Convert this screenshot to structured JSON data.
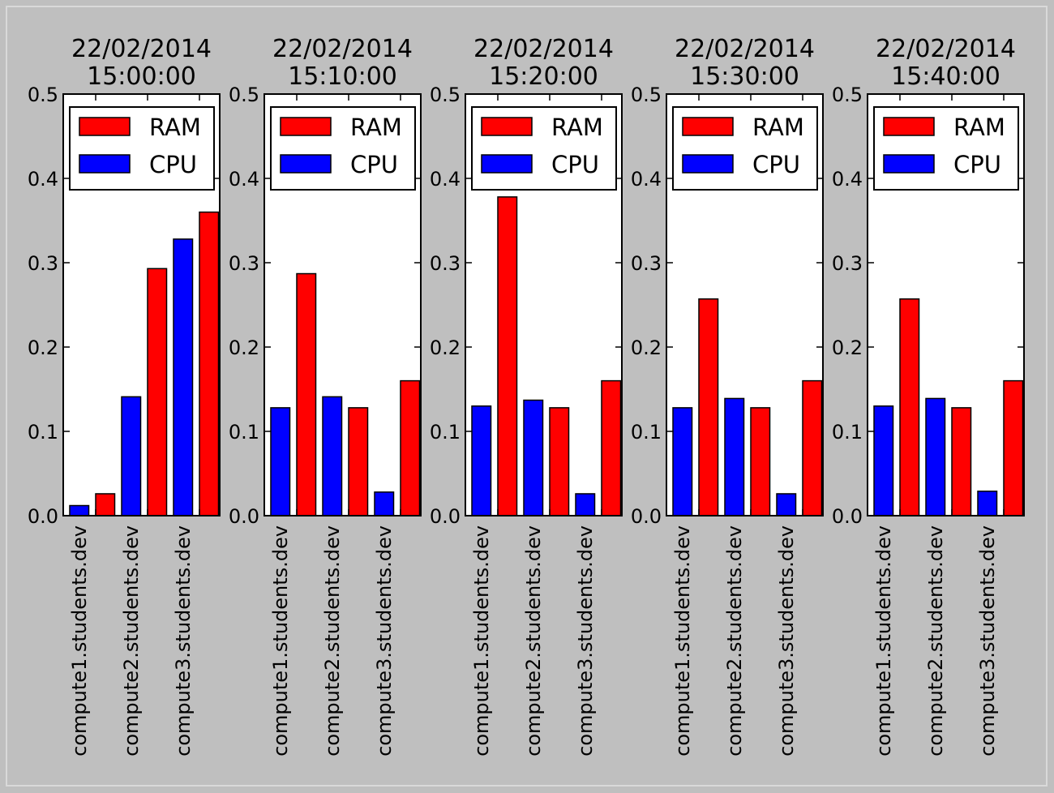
{
  "figure": {
    "background": "#bfbfbf",
    "ram_color": "#ff0000",
    "cpu_color": "#0000ff"
  },
  "chart_data": [
    {
      "type": "bar",
      "title_lines": [
        "22/02/2014",
        "15:00:00"
      ],
      "categories": [
        "compute1.students.dev",
        "compute2.students.dev",
        "compute3.students.dev"
      ],
      "series": [
        {
          "name": "CPU",
          "values": [
            0.012,
            0.141,
            0.328
          ]
        },
        {
          "name": "RAM",
          "values": [
            0.026,
            0.293,
            0.36
          ]
        }
      ],
      "legend": [
        "RAM",
        "CPU"
      ],
      "legend_position": "top",
      "ylim": [
        0.0,
        0.5
      ],
      "yticks": [
        "0.0",
        "0.1",
        "0.2",
        "0.3",
        "0.4",
        "0.5"
      ],
      "grid": false
    },
    {
      "type": "bar",
      "title_lines": [
        "22/02/2014",
        "15:10:00"
      ],
      "categories": [
        "compute1.students.dev",
        "compute2.students.dev",
        "compute3.students.dev"
      ],
      "series": [
        {
          "name": "CPU",
          "values": [
            0.128,
            0.141,
            0.028
          ]
        },
        {
          "name": "RAM",
          "values": [
            0.287,
            0.128,
            0.16
          ]
        }
      ],
      "legend": [
        "RAM",
        "CPU"
      ],
      "legend_position": "top",
      "ylim": [
        0.0,
        0.5
      ],
      "yticks": [
        "0.0",
        "0.1",
        "0.2",
        "0.3",
        "0.4",
        "0.5"
      ],
      "grid": false
    },
    {
      "type": "bar",
      "title_lines": [
        "22/02/2014",
        "15:20:00"
      ],
      "categories": [
        "compute1.students.dev",
        "compute2.students.dev",
        "compute3.students.dev"
      ],
      "series": [
        {
          "name": "CPU",
          "values": [
            0.13,
            0.137,
            0.026
          ]
        },
        {
          "name": "RAM",
          "values": [
            0.378,
            0.128,
            0.16
          ]
        }
      ],
      "legend": [
        "RAM",
        "CPU"
      ],
      "legend_position": "top",
      "ylim": [
        0.0,
        0.5
      ],
      "yticks": [
        "0.0",
        "0.1",
        "0.2",
        "0.3",
        "0.4",
        "0.5"
      ],
      "grid": false
    },
    {
      "type": "bar",
      "title_lines": [
        "22/02/2014",
        "15:30:00"
      ],
      "categories": [
        "compute1.students.dev",
        "compute2.students.dev",
        "compute3.students.dev"
      ],
      "series": [
        {
          "name": "CPU",
          "values": [
            0.128,
            0.139,
            0.026
          ]
        },
        {
          "name": "RAM",
          "values": [
            0.257,
            0.128,
            0.16
          ]
        }
      ],
      "legend": [
        "RAM",
        "CPU"
      ],
      "legend_position": "top",
      "ylim": [
        0.0,
        0.5
      ],
      "yticks": [
        "0.0",
        "0.1",
        "0.2",
        "0.3",
        "0.4",
        "0.5"
      ],
      "grid": false
    },
    {
      "type": "bar",
      "title_lines": [
        "22/02/2014",
        "15:40:00"
      ],
      "categories": [
        "compute1.students.dev",
        "compute2.students.dev",
        "compute3.students.dev"
      ],
      "series": [
        {
          "name": "CPU",
          "values": [
            0.13,
            0.139,
            0.029
          ]
        },
        {
          "name": "RAM",
          "values": [
            0.257,
            0.128,
            0.16
          ]
        }
      ],
      "legend": [
        "RAM",
        "CPU"
      ],
      "legend_position": "top",
      "ylim": [
        0.0,
        0.5
      ],
      "yticks": [
        "0.0",
        "0.1",
        "0.2",
        "0.3",
        "0.4",
        "0.5"
      ],
      "grid": false
    }
  ]
}
